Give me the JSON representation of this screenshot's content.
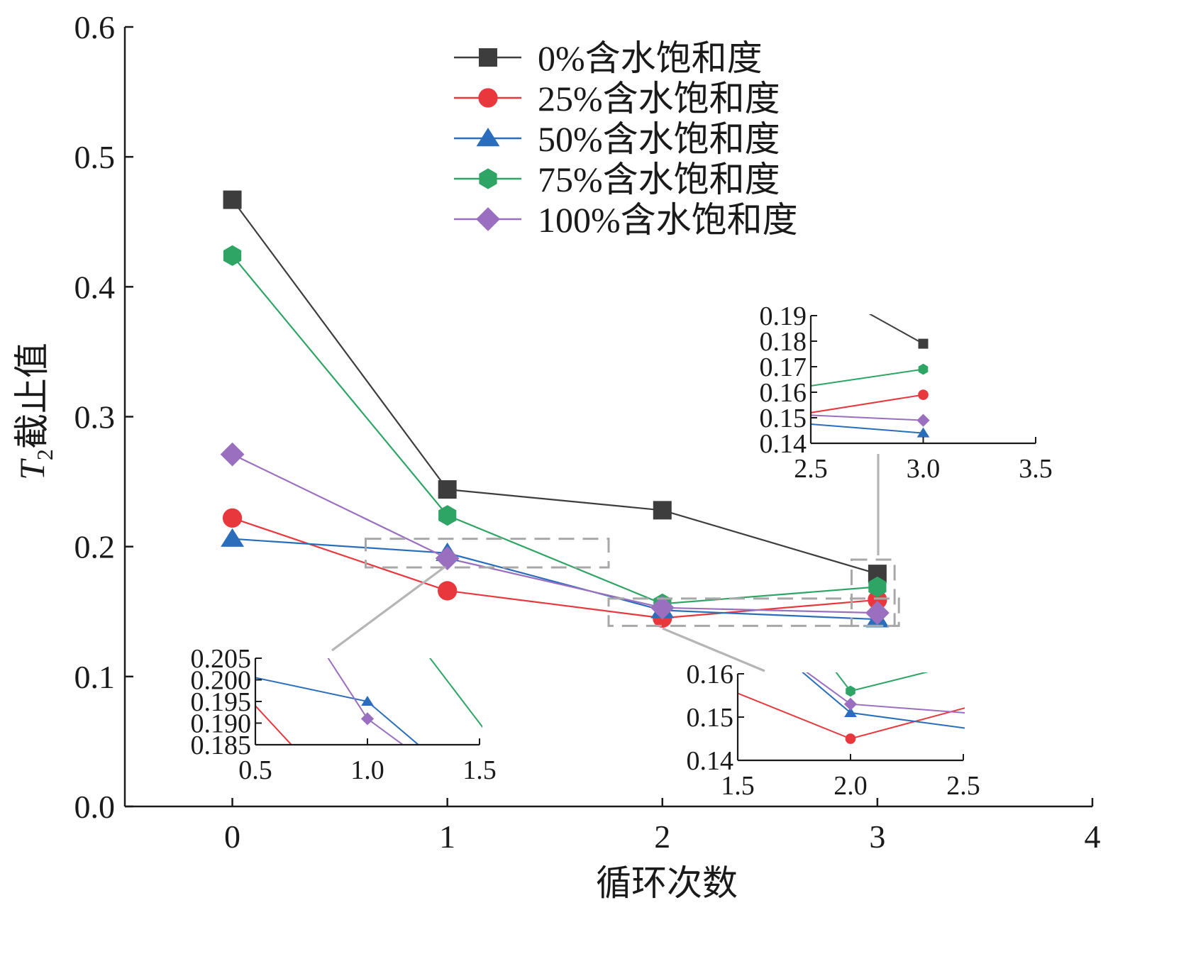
{
  "chart_data": [
    {
      "id": "main",
      "type": "line",
      "title": "",
      "xlabel": "循环次数",
      "ylabel": {
        "main": "T",
        "sub": "2",
        "rest": "截止值"
      },
      "xlim": [
        -0.5,
        4
      ],
      "ylim": [
        0,
        0.6
      ],
      "xticks": [
        "0",
        "1",
        "2",
        "3",
        "4"
      ],
      "yticks": [
        "0.0",
        "0.1",
        "0.2",
        "0.3",
        "0.4",
        "0.5",
        "0.6"
      ],
      "grid": false,
      "legend_position": "top-right",
      "x": [
        0,
        1,
        2,
        3
      ],
      "series": [
        {
          "name": "0%含水饱和度",
          "color": "#3d3d3d",
          "marker": "square",
          "values": [
            0.467,
            0.244,
            0.228,
            0.179
          ]
        },
        {
          "name": "25%含水饱和度",
          "color": "#e8383d",
          "marker": "circle",
          "values": [
            0.222,
            0.166,
            0.145,
            0.159
          ]
        },
        {
          "name": "50%含水饱和度",
          "color": "#2a6ebb",
          "marker": "triangle",
          "values": [
            0.206,
            0.195,
            0.151,
            0.144
          ]
        },
        {
          "name": "75%含水饱和度",
          "color": "#2ea565",
          "marker": "hexagon",
          "values": [
            0.424,
            0.224,
            0.156,
            0.169
          ]
        },
        {
          "name": "100%含水饱和度",
          "color": "#9b6fc0",
          "marker": "diamond",
          "values": [
            0.271,
            0.191,
            0.153,
            0.149
          ]
        }
      ]
    },
    {
      "id": "inset-left",
      "type": "line",
      "xlim": [
        0.5,
        1.5
      ],
      "ylim": [
        0.185,
        0.205
      ],
      "xticks": [
        "0.5",
        "1.0",
        "1.5"
      ],
      "yticks": [
        "0.185",
        "0.190",
        "0.195",
        "0.200",
        "0.205"
      ]
    },
    {
      "id": "inset-mid",
      "type": "line",
      "xlim": [
        1.5,
        2.5
      ],
      "ylim": [
        0.14,
        0.16
      ],
      "xticks": [
        "1.5",
        "2.0",
        "2.5"
      ],
      "yticks": [
        "0.14",
        "0.15",
        "0.16"
      ]
    },
    {
      "id": "inset-right",
      "type": "line",
      "xlim": [
        2.5,
        3.5
      ],
      "ylim": [
        0.14,
        0.19
      ],
      "xticks": [
        "2.5",
        "3.0",
        "3.5"
      ],
      "yticks": [
        "0.14",
        "0.15",
        "0.16",
        "0.17",
        "0.18",
        "0.19"
      ]
    }
  ]
}
